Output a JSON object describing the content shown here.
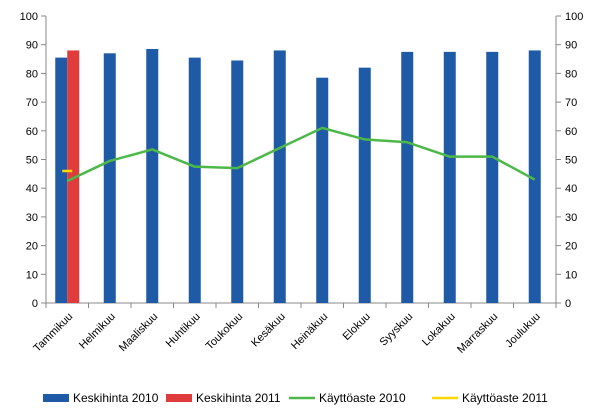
{
  "chart_data": {
    "type": "bar",
    "categories": [
      "Tammikuu",
      "Helmikuu",
      "Maaliskuu",
      "Huhtikuu",
      "Toukokuu",
      "Kesäkuu",
      "Heinäkuu",
      "Elokuu",
      "Syyskuu",
      "Lokakuu",
      "Marraskuu",
      "Joulukuu"
    ],
    "bar_series": [
      {
        "name": "Keskihinta 2010",
        "color": "#1f5aa6",
        "values": [
          85.5,
          87,
          88.5,
          85.5,
          84.5,
          88,
          78.5,
          82,
          87.5,
          87.5,
          87.5,
          88
        ]
      },
      {
        "name": "Keskihinta 2011",
        "color": "#e03c3c",
        "values": [
          88,
          null,
          null,
          null,
          null,
          null,
          null,
          null,
          null,
          null,
          null,
          null
        ]
      }
    ],
    "line_series": [
      {
        "name": "Käyttöaste 2010",
        "color": "#4cb848",
        "values": [
          42.5,
          49.5,
          53.5,
          47.5,
          47,
          54,
          61,
          57,
          56,
          51,
          51,
          43
        ]
      },
      {
        "name": "Käyttöaste 2011",
        "color": "#ffd700",
        "values": [
          46,
          null,
          null,
          null,
          null,
          null,
          null,
          null,
          null,
          null,
          null,
          null
        ]
      }
    ],
    "y_left": {
      "min": 0,
      "max": 100,
      "step": 10,
      "ticks": [
        "0",
        "10",
        "20",
        "30",
        "40",
        "50",
        "60",
        "70",
        "80",
        "90",
        "100"
      ]
    },
    "y_right": {
      "min": 0,
      "max": 100,
      "step": 10,
      "ticks": [
        "0",
        "10",
        "20",
        "30",
        "40",
        "50",
        "60",
        "70",
        "80",
        "90",
        "100"
      ]
    },
    "legend": {
      "placement": "bottom",
      "items": [
        "Keskihinta 2010",
        "Keskihinta 2011",
        "Käyttöaste 2010",
        "Käyttöaste 2011"
      ]
    },
    "grid": false
  }
}
